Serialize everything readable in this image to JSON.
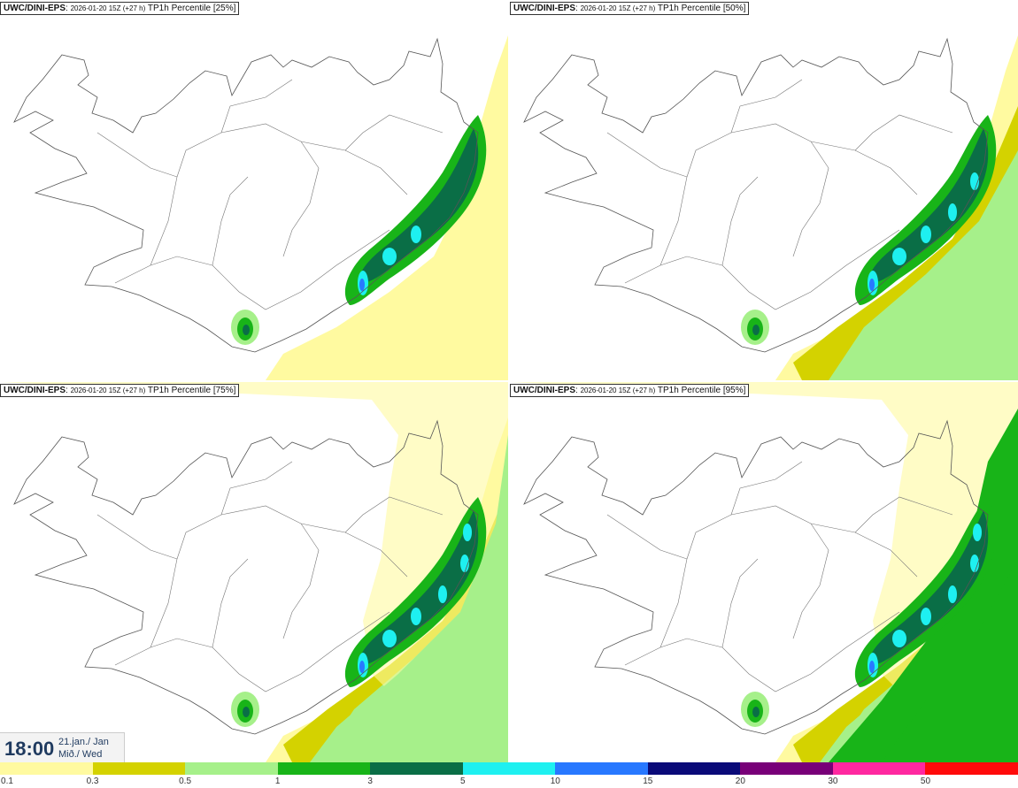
{
  "panels": [
    {
      "source": "UWC/DINI-EPS",
      "run": "2026-01-20 15Z (+27 h)",
      "product": "TP1h Percentile [25%]",
      "level": 1
    },
    {
      "source": "UWC/DINI-EPS",
      "run": "2026-01-20 15Z (+27 h)",
      "product": "TP1h Percentile [50%]",
      "level": 2
    },
    {
      "source": "UWC/DINI-EPS",
      "run": "2026-01-20 15Z (+27 h)",
      "product": "TP1h Percentile [75%]",
      "level": 3
    },
    {
      "source": "UWC/DINI-EPS",
      "run": "2026-01-20 15Z (+27 h)",
      "product": "TP1h Percentile [95%]",
      "level": 4
    }
  ],
  "time": {
    "clock": "18:00",
    "date": "21.jan./ Jan",
    "weekday": "Mið./ Wed"
  },
  "legend": {
    "ticks": [
      "0.1",
      "0.3",
      "0.5",
      "1",
      "3",
      "5",
      "10",
      "15",
      "20",
      "30",
      "50"
    ],
    "colors": [
      "#fffaa0",
      "#d4d200",
      "#a6f08a",
      "#18b418",
      "#0a6e46",
      "#1ef0f0",
      "#2878ff",
      "#0a0a78",
      "#780078",
      "#ff28a0",
      "#ff0a0a"
    ]
  }
}
